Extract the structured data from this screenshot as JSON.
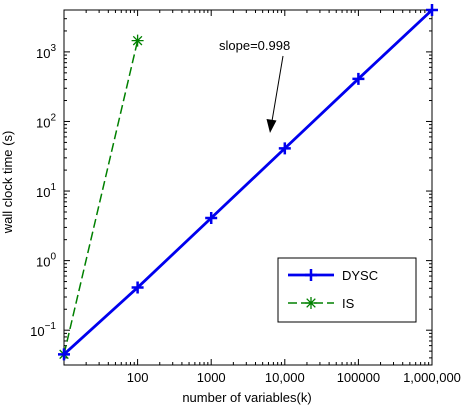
{
  "chart_data": {
    "type": "line",
    "title": "",
    "xlabel": "number of variables(k)",
    "ylabel": "wall clock time (s)",
    "x_scale": "log",
    "y_scale": "log",
    "xlim": [
      10,
      1000000
    ],
    "ylim": [
      0.0316,
      4000
    ],
    "x_ticks": [
      {
        "value": 100,
        "label": "100"
      },
      {
        "value": 1000,
        "label": "1000"
      },
      {
        "value": 10000,
        "label": "10,000"
      },
      {
        "value": 100000,
        "label": "100000"
      },
      {
        "value": 1000000,
        "label": "1,000,000"
      }
    ],
    "y_ticks": [
      {
        "value": 0.1,
        "base": "10",
        "exp": "−1"
      },
      {
        "value": 1,
        "base": "10",
        "exp": "0"
      },
      {
        "value": 10,
        "base": "10",
        "exp": "1"
      },
      {
        "value": 100,
        "base": "10",
        "exp": "2"
      },
      {
        "value": 1000,
        "base": "10",
        "exp": "3"
      }
    ],
    "grid": false,
    "legend_position": "lower-right",
    "series": [
      {
        "name": "DYSC",
        "color": "#0000ee",
        "line_style": "solid",
        "marker": "plus",
        "x": [
          10,
          100,
          1000,
          10000,
          100000,
          1000000
        ],
        "y": [
          0.045,
          0.41,
          4.1,
          41,
          410,
          4000
        ]
      },
      {
        "name": "IS",
        "color": "#008000",
        "line_style": "dashed",
        "marker": "asterisk",
        "x": [
          10,
          100
        ],
        "y": [
          0.045,
          1450
        ]
      }
    ],
    "annotations": [
      {
        "text": "slope=0.998",
        "arrow": true
      }
    ]
  }
}
